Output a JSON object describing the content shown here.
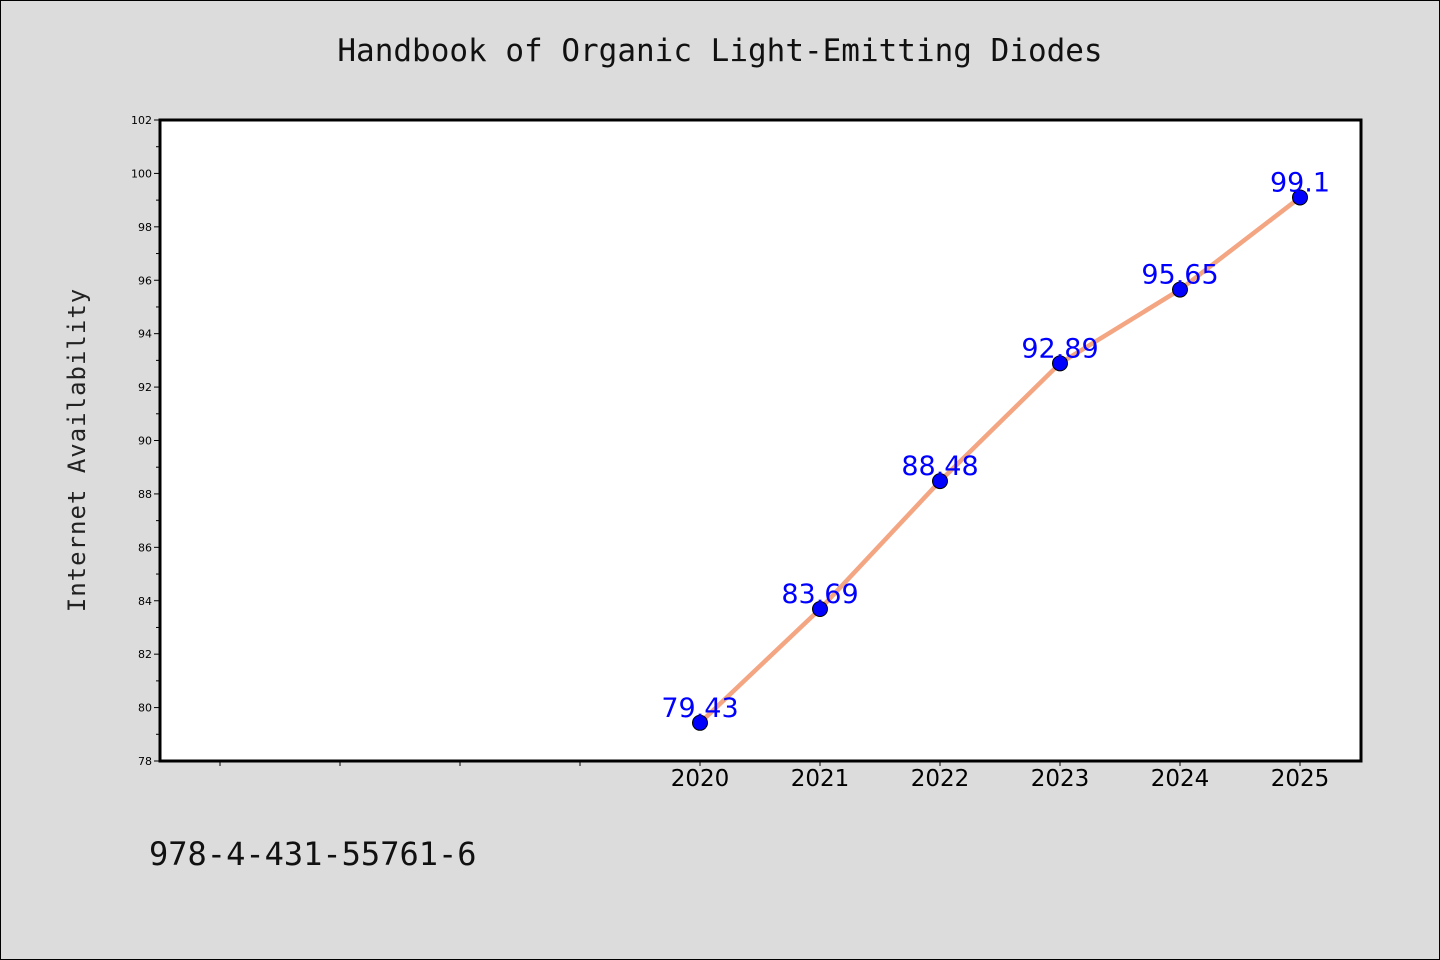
{
  "chart_data": {
    "type": "line",
    "title": "Handbook of Organic Light-Emitting Diodes",
    "xlabel": "",
    "ylabel": "Internet Availability",
    "categories": [
      "2020",
      "2021",
      "2022",
      "2023",
      "2024",
      "2025"
    ],
    "x_all_ticks": [
      "",
      "",
      "",
      "",
      "2020",
      "2021",
      "2022",
      "2023",
      "2024",
      "2025"
    ],
    "values": [
      79.43,
      83.69,
      88.48,
      92.89,
      95.65,
      99.1
    ],
    "data_labels": [
      "79.43",
      "83.69",
      "88.48",
      "92.89",
      "95.65",
      "99.1"
    ],
    "ylim": [
      78,
      102
    ],
    "yticks": [
      78,
      80,
      82,
      84,
      86,
      88,
      90,
      92,
      94,
      96,
      98,
      100,
      102
    ],
    "grid": false,
    "legend": "none",
    "colors": {
      "line": "#f4a582",
      "marker": "#0000ff",
      "label": "#0000ff",
      "plot_bg": "#ffffff",
      "figure_bg": "#dcdcdc"
    }
  },
  "footer": {
    "code": "978-4-431-55761-6"
  }
}
